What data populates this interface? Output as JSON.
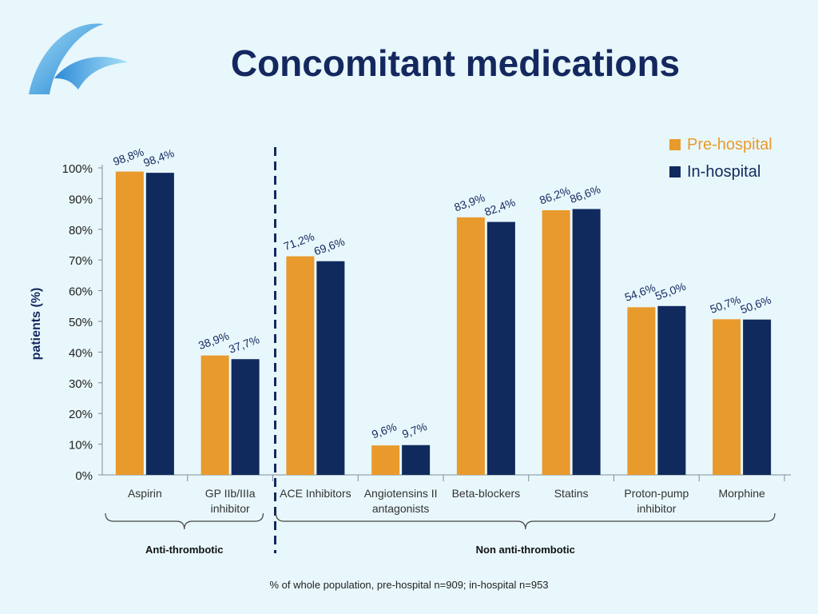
{
  "slide": {
    "title": "Concomitant medications",
    "footnote": "% of whole population, pre-hospital n=909; in-hospital n=953"
  },
  "colors": {
    "pre_hospital": "#e89a2c",
    "in_hospital": "#102a5e",
    "title": "#14285f",
    "background": "#e8f7fb"
  },
  "chart_data": {
    "type": "bar",
    "title": "",
    "ylabel": "patients (%)",
    "xlabel": "",
    "ylim": [
      0,
      100
    ],
    "yticks": [
      "0%",
      "10%",
      "20%",
      "30%",
      "40%",
      "50%",
      "60%",
      "70%",
      "80%",
      "90%",
      "100%"
    ],
    "grid": false,
    "legend_position": "top-right",
    "categories": [
      "Aspirin",
      "GP IIb/IIIa\ninhibitor",
      "ACE Inhibitors",
      "Angiotensins II\nantagonists",
      "Beta-blockers",
      "Statins",
      "Proton-pump\ninhibitor",
      "Morphine"
    ],
    "series": [
      {
        "name": "Pre-hospital",
        "values": [
          98.8,
          38.9,
          71.2,
          9.6,
          83.9,
          86.2,
          54.6,
          50.7
        ],
        "labels": [
          "98,8%",
          "38,9%",
          "71,2%",
          "9,6%",
          "83,9%",
          "86,2%",
          "54,6%",
          "50,7%"
        ]
      },
      {
        "name": "In-hospital",
        "values": [
          98.4,
          37.7,
          69.6,
          9.7,
          82.4,
          86.6,
          55.0,
          50.6
        ],
        "labels": [
          "98,4%",
          "37,7%",
          "69,6%",
          "9,7%",
          "82,4%",
          "86,6%",
          "55,0%",
          "50,6%"
        ]
      }
    ],
    "groups": [
      {
        "label": "Anti-thrombotic",
        "from": 0,
        "to": 1
      },
      {
        "label": "Non anti-thrombotic",
        "from": 2,
        "to": 7
      }
    ]
  }
}
